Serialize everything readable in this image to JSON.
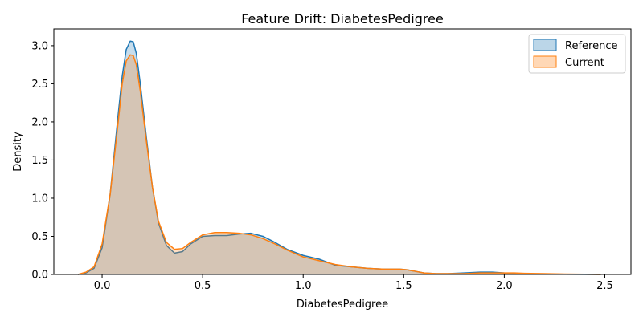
{
  "chart_data": {
    "type": "area",
    "title": "Feature Drift: DiabetesPedigree",
    "xlabel": "DiabetesPedigree",
    "ylabel": "Density",
    "xlim": [
      -0.24,
      2.63
    ],
    "ylim": [
      0,
      3.22
    ],
    "x_ticks": [
      0.0,
      0.5,
      1.0,
      1.5,
      2.0,
      2.5
    ],
    "x_tick_labels": [
      "0.0",
      "0.5",
      "1.0",
      "1.5",
      "2.0",
      "2.5"
    ],
    "y_ticks": [
      0.0,
      0.5,
      1.0,
      1.5,
      2.0,
      2.5,
      3.0
    ],
    "y_tick_labels": [
      "0.0",
      "0.5",
      "1.0",
      "1.5",
      "2.0",
      "2.5",
      "3.0"
    ],
    "grid": false,
    "legend_position": "top-right",
    "series": [
      {
        "name": "Reference",
        "line_color": "#1f77b4",
        "fill_color": "#1f77b4",
        "x": [
          -0.12,
          -0.08,
          -0.04,
          0.0,
          0.04,
          0.08,
          0.1,
          0.12,
          0.14,
          0.155,
          0.17,
          0.19,
          0.22,
          0.25,
          0.28,
          0.32,
          0.36,
          0.4,
          0.44,
          0.5,
          0.56,
          0.62,
          0.68,
          0.74,
          0.8,
          0.86,
          0.92,
          1.0,
          1.08,
          1.16,
          1.24,
          1.32,
          1.4,
          1.48,
          1.52,
          1.56,
          1.6,
          1.66,
          1.72,
          1.8,
          1.88,
          1.94,
          2.0,
          2.05,
          2.1,
          2.2,
          2.3,
          2.4,
          2.48
        ],
        "y": [
          0.0,
          0.02,
          0.08,
          0.35,
          1.05,
          2.1,
          2.6,
          2.95,
          3.06,
          3.05,
          2.9,
          2.5,
          1.8,
          1.15,
          0.68,
          0.38,
          0.28,
          0.3,
          0.4,
          0.5,
          0.51,
          0.51,
          0.53,
          0.54,
          0.5,
          0.42,
          0.33,
          0.25,
          0.2,
          0.12,
          0.1,
          0.08,
          0.07,
          0.07,
          0.06,
          0.04,
          0.02,
          0.01,
          0.01,
          0.02,
          0.03,
          0.03,
          0.02,
          0.015,
          0.01,
          0.005,
          0.003,
          0.001,
          0.0
        ]
      },
      {
        "name": "Current",
        "line_color": "#ff7f0e",
        "fill_color": "#ff7f0e",
        "x": [
          -0.12,
          -0.08,
          -0.04,
          0.0,
          0.04,
          0.08,
          0.1,
          0.12,
          0.14,
          0.155,
          0.17,
          0.19,
          0.22,
          0.25,
          0.28,
          0.32,
          0.36,
          0.4,
          0.44,
          0.5,
          0.56,
          0.62,
          0.68,
          0.74,
          0.8,
          0.86,
          0.92,
          1.0,
          1.08,
          1.16,
          1.24,
          1.32,
          1.4,
          1.48,
          1.52,
          1.56,
          1.6,
          1.66,
          1.72,
          1.8,
          1.88,
          1.94,
          2.0,
          2.05,
          2.1,
          2.2,
          2.3,
          2.4,
          2.48
        ],
        "y": [
          0.0,
          0.03,
          0.1,
          0.4,
          1.05,
          2.0,
          2.5,
          2.8,
          2.88,
          2.87,
          2.75,
          2.4,
          1.75,
          1.15,
          0.7,
          0.42,
          0.33,
          0.34,
          0.42,
          0.52,
          0.55,
          0.55,
          0.54,
          0.52,
          0.47,
          0.4,
          0.32,
          0.23,
          0.18,
          0.13,
          0.1,
          0.08,
          0.07,
          0.07,
          0.06,
          0.04,
          0.02,
          0.01,
          0.01,
          0.01,
          0.02,
          0.02,
          0.02,
          0.02,
          0.015,
          0.01,
          0.005,
          0.002,
          0.0
        ]
      }
    ]
  }
}
